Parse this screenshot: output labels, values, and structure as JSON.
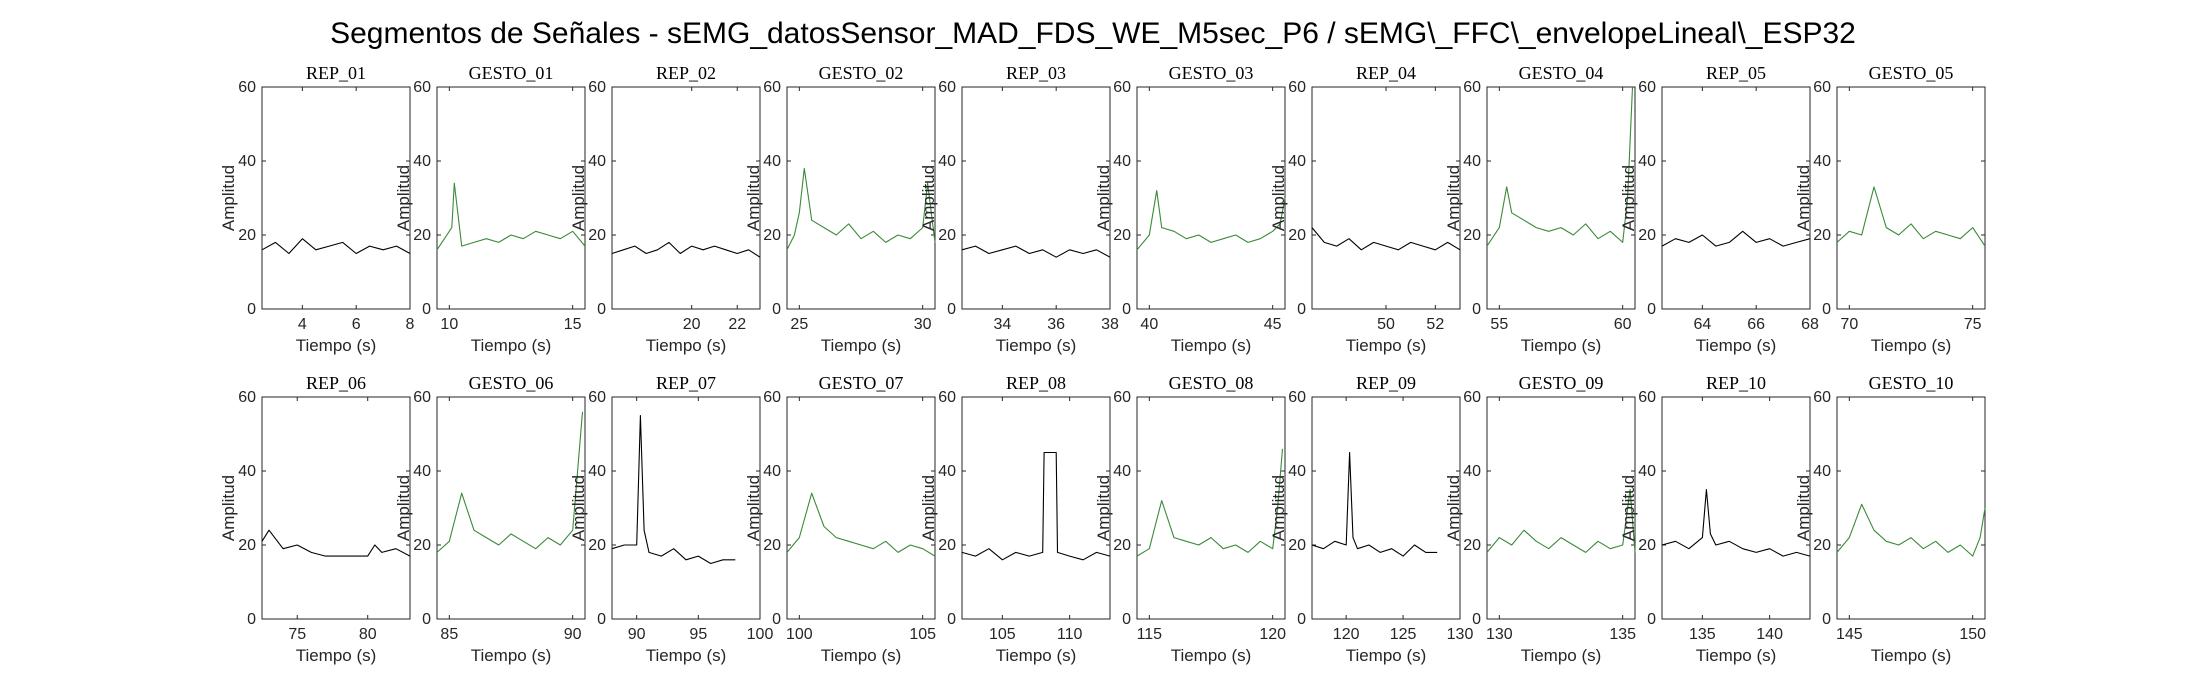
{
  "figure_title": "Segmentos de Señales - sEMG_datosSensor_MAD_FDS_WE_M5sec_P6 / sEMG\\_FFC\\_envelopeLineal\\_ESP32",
  "colors": {
    "rep": "#000000",
    "gesto": "#3a8a3a",
    "axes": "#262626"
  },
  "chart_data": [
    {
      "type": "line",
      "title": "REP_01",
      "xlabel": "Tiempo (s)",
      "ylabel": "Amplitud",
      "xlim": [
        2.5,
        8
      ],
      "ylim": [
        0,
        60
      ],
      "xticks": [
        4,
        6,
        8
      ],
      "yticks": [
        0,
        20,
        40,
        60
      ],
      "color_key": "rep",
      "series": [
        {
          "x": [
            2.5,
            3,
            3.5,
            4,
            4.5,
            5,
            5.5,
            6,
            6.5,
            7,
            7.5,
            8
          ],
          "y": [
            16,
            18,
            15,
            19,
            16,
            17,
            18,
            15,
            17,
            16,
            17,
            15
          ]
        }
      ]
    },
    {
      "type": "line",
      "title": "GESTO_01",
      "xlabel": "Tiempo (s)",
      "ylabel": "Amplitud",
      "xlim": [
        9.5,
        15.5
      ],
      "ylim": [
        0,
        60
      ],
      "xticks": [
        10,
        15
      ],
      "yticks": [
        0,
        20,
        40,
        60
      ],
      "color_key": "gesto",
      "series": [
        {
          "x": [
            9.5,
            9.8,
            10.1,
            10.2,
            10.5,
            11,
            11.5,
            12,
            12.5,
            13,
            13.5,
            14,
            14.5,
            15,
            15.5
          ],
          "y": [
            16,
            19,
            22,
            34,
            17,
            18,
            19,
            18,
            20,
            19,
            21,
            20,
            19,
            21,
            17
          ]
        }
      ]
    },
    {
      "type": "line",
      "title": "REP_02",
      "xlabel": "Tiempo (s)",
      "ylabel": "Amplitud",
      "xlim": [
        16.5,
        23
      ],
      "ylim": [
        0,
        60
      ],
      "xticks": [
        20,
        22
      ],
      "yticks": [
        0,
        20,
        40,
        60
      ],
      "color_key": "rep",
      "series": [
        {
          "x": [
            16.5,
            17,
            17.5,
            18,
            18.5,
            19,
            19.5,
            20,
            20.5,
            21,
            21.5,
            22,
            22.5,
            23
          ],
          "y": [
            15,
            16,
            17,
            15,
            16,
            18,
            15,
            17,
            16,
            17,
            16,
            15,
            16,
            14
          ]
        }
      ]
    },
    {
      "type": "line",
      "title": "GESTO_02",
      "xlabel": "Tiempo (s)",
      "ylabel": "Amplitud",
      "xlim": [
        24.5,
        30.5
      ],
      "ylim": [
        0,
        60
      ],
      "xticks": [
        25,
        30
      ],
      "yticks": [
        0,
        20,
        40,
        60
      ],
      "color_key": "gesto",
      "series": [
        {
          "x": [
            24.5,
            24.8,
            25,
            25.2,
            25.5,
            26,
            26.5,
            27,
            27.5,
            28,
            28.5,
            29,
            29.5,
            30,
            30.2,
            30.5
          ],
          "y": [
            16,
            20,
            26,
            38,
            24,
            22,
            20,
            23,
            19,
            21,
            18,
            20,
            19,
            22,
            34,
            18
          ]
        }
      ]
    },
    {
      "type": "line",
      "title": "REP_03",
      "xlabel": "Tiempo (s)",
      "ylabel": "Amplitud",
      "xlim": [
        32.5,
        38
      ],
      "ylim": [
        0,
        60
      ],
      "xticks": [
        34,
        36,
        38
      ],
      "yticks": [
        0,
        20,
        40,
        60
      ],
      "color_key": "rep",
      "series": [
        {
          "x": [
            32.5,
            33,
            33.5,
            34,
            34.5,
            35,
            35.5,
            36,
            36.5,
            37,
            37.5,
            38
          ],
          "y": [
            16,
            17,
            15,
            16,
            17,
            15,
            16,
            14,
            16,
            15,
            16,
            14
          ]
        }
      ]
    },
    {
      "type": "line",
      "title": "GESTO_03",
      "xlabel": "Tiempo (s)",
      "ylabel": "Amplitud",
      "xlim": [
        39.5,
        45.5
      ],
      "ylim": [
        0,
        60
      ],
      "xticks": [
        40,
        45
      ],
      "yticks": [
        0,
        20,
        40,
        60
      ],
      "color_key": "gesto",
      "series": [
        {
          "x": [
            39.5,
            40,
            40.3,
            40.5,
            41,
            41.5,
            42,
            42.5,
            43,
            43.5,
            44,
            44.5,
            45,
            45.3,
            45.5
          ],
          "y": [
            16,
            20,
            32,
            22,
            21,
            19,
            20,
            18,
            19,
            20,
            18,
            19,
            21,
            23,
            30
          ]
        }
      ]
    },
    {
      "type": "line",
      "title": "REP_04",
      "xlabel": "Tiempo (s)",
      "ylabel": "Amplitud",
      "xlim": [
        47,
        53
      ],
      "ylim": [
        0,
        60
      ],
      "xticks": [
        50,
        52
      ],
      "yticks": [
        0,
        20,
        40,
        60
      ],
      "color_key": "rep",
      "series": [
        {
          "x": [
            47,
            47.5,
            48,
            48.5,
            49,
            49.5,
            50,
            50.5,
            51,
            51.5,
            52,
            52.5,
            53
          ],
          "y": [
            22,
            18,
            17,
            19,
            16,
            18,
            17,
            16,
            18,
            17,
            16,
            18,
            16
          ]
        }
      ]
    },
    {
      "type": "line",
      "title": "GESTO_04",
      "xlabel": "Tiempo (s)",
      "ylabel": "Amplitud",
      "xlim": [
        54.5,
        60.5
      ],
      "ylim": [
        0,
        60
      ],
      "xticks": [
        55,
        60
      ],
      "yticks": [
        0,
        20,
        40,
        60
      ],
      "color_key": "gesto",
      "series": [
        {
          "x": [
            54.5,
            55,
            55.3,
            55.5,
            56,
            56.5,
            57,
            57.5,
            58,
            58.5,
            59,
            59.5,
            60,
            60.2,
            60.4
          ],
          "y": [
            17,
            22,
            33,
            26,
            24,
            22,
            21,
            22,
            20,
            23,
            19,
            21,
            18,
            30,
            60
          ]
        }
      ]
    },
    {
      "type": "line",
      "title": "REP_05",
      "xlabel": "Tiempo (s)",
      "ylabel": "Amplitud",
      "xlim": [
        62.5,
        68
      ],
      "ylim": [
        0,
        60
      ],
      "xticks": [
        64,
        66,
        68
      ],
      "yticks": [
        0,
        20,
        40,
        60
      ],
      "color_key": "rep",
      "series": [
        {
          "x": [
            62.5,
            63,
            63.5,
            64,
            64.5,
            65,
            65.5,
            66,
            66.5,
            67,
            67.5,
            68
          ],
          "y": [
            17,
            19,
            18,
            20,
            17,
            18,
            21,
            18,
            19,
            17,
            18,
            19
          ]
        }
      ]
    },
    {
      "type": "line",
      "title": "GESTO_05",
      "xlabel": "Tiempo (s)",
      "ylabel": "Amplitud",
      "xlim": [
        69.5,
        75.5
      ],
      "ylim": [
        0,
        60
      ],
      "xticks": [
        70,
        75
      ],
      "yticks": [
        0,
        20,
        40,
        60
      ],
      "color_key": "gesto",
      "series": [
        {
          "x": [
            69.5,
            70,
            70.5,
            71,
            71.5,
            72,
            72.5,
            73,
            73.5,
            74,
            74.5,
            75,
            75.5
          ],
          "y": [
            18,
            21,
            20,
            33,
            22,
            20,
            23,
            19,
            21,
            20,
            19,
            22,
            17
          ]
        }
      ]
    },
    {
      "type": "line",
      "title": "REP_06",
      "xlabel": "Tiempo (s)",
      "ylabel": "Amplitud",
      "xlim": [
        72.5,
        83
      ],
      "ylim": [
        0,
        60
      ],
      "xticks": [
        75,
        80
      ],
      "yticks": [
        0,
        20,
        40,
        60
      ],
      "color_key": "rep",
      "series": [
        {
          "x": [
            72.5,
            73,
            74,
            75,
            76,
            77,
            78,
            79,
            80,
            80.5,
            81,
            82,
            83
          ],
          "y": [
            21,
            24,
            19,
            20,
            18,
            17,
            17,
            17,
            17,
            20,
            18,
            19,
            17
          ]
        }
      ]
    },
    {
      "type": "line",
      "title": "GESTO_06",
      "xlabel": "Tiempo (s)",
      "ylabel": "Amplitud",
      "xlim": [
        84.5,
        90.5
      ],
      "ylim": [
        0,
        60
      ],
      "xticks": [
        85,
        90
      ],
      "yticks": [
        0,
        20,
        40,
        60
      ],
      "color_key": "gesto",
      "series": [
        {
          "x": [
            84.5,
            85,
            85.5,
            86,
            86.5,
            87,
            87.5,
            88,
            88.5,
            89,
            89.5,
            90,
            90.2,
            90.4
          ],
          "y": [
            18,
            21,
            34,
            24,
            22,
            20,
            23,
            21,
            19,
            22,
            20,
            24,
            40,
            56
          ]
        }
      ]
    },
    {
      "type": "line",
      "title": "REP_07",
      "xlabel": "Tiempo (s)",
      "ylabel": "Amplitud",
      "xlim": [
        88,
        100
      ],
      "ylim": [
        0,
        60
      ],
      "xticks": [
        90,
        95,
        100
      ],
      "yticks": [
        0,
        20,
        40,
        60
      ],
      "color_key": "rep",
      "series": [
        {
          "x": [
            88,
            89,
            90,
            90.3,
            90.6,
            91,
            92,
            93,
            94,
            95,
            96,
            97,
            98
          ],
          "y": [
            19,
            20,
            20,
            55,
            24,
            18,
            17,
            19,
            16,
            17,
            15,
            16,
            16
          ]
        }
      ]
    },
    {
      "type": "line",
      "title": "GESTO_07",
      "xlabel": "Tiempo (s)",
      "ylabel": "Amplitud",
      "xlim": [
        99.5,
        105.5
      ],
      "ylim": [
        0,
        60
      ],
      "xticks": [
        100,
        105
      ],
      "yticks": [
        0,
        20,
        40,
        60
      ],
      "color_key": "gesto",
      "series": [
        {
          "x": [
            99.5,
            100,
            100.5,
            101,
            101.5,
            102,
            102.5,
            103,
            103.5,
            104,
            104.5,
            105,
            105.5
          ],
          "y": [
            18,
            22,
            34,
            25,
            22,
            21,
            20,
            19,
            21,
            18,
            20,
            19,
            17
          ]
        }
      ]
    },
    {
      "type": "line",
      "title": "REP_08",
      "xlabel": "Tiempo (s)",
      "ylabel": "Amplitud",
      "xlim": [
        102,
        113
      ],
      "ylim": [
        0,
        60
      ],
      "xticks": [
        105,
        110
      ],
      "yticks": [
        0,
        20,
        40,
        60
      ],
      "color_key": "rep",
      "series": [
        {
          "x": [
            102,
            103,
            104,
            105,
            106,
            107,
            108,
            108.1,
            109,
            109.1,
            110,
            111,
            112,
            113
          ],
          "y": [
            18,
            17,
            19,
            16,
            18,
            17,
            18,
            45,
            45,
            18,
            17,
            16,
            18,
            17
          ]
        }
      ]
    },
    {
      "type": "line",
      "title": "GESTO_08",
      "xlabel": "Tiempo (s)",
      "ylabel": "Amplitud",
      "xlim": [
        114.5,
        120.5
      ],
      "ylim": [
        0,
        60
      ],
      "xticks": [
        115,
        120
      ],
      "yticks": [
        0,
        20,
        40,
        60
      ],
      "color_key": "gesto",
      "series": [
        {
          "x": [
            114.5,
            115,
            115.5,
            116,
            116.5,
            117,
            117.5,
            118,
            118.5,
            119,
            119.5,
            120,
            120.2,
            120.4
          ],
          "y": [
            17,
            19,
            32,
            22,
            21,
            20,
            22,
            19,
            20,
            18,
            21,
            19,
            30,
            46
          ]
        }
      ]
    },
    {
      "type": "line",
      "title": "REP_09",
      "xlabel": "Tiempo (s)",
      "ylabel": "Amplitud",
      "xlim": [
        117,
        130
      ],
      "ylim": [
        0,
        60
      ],
      "xticks": [
        120,
        125,
        130
      ],
      "yticks": [
        0,
        20,
        40,
        60
      ],
      "color_key": "rep",
      "series": [
        {
          "x": [
            117,
            118,
            119,
            120,
            120.3,
            120.6,
            121,
            122,
            123,
            124,
            125,
            126,
            127,
            128
          ],
          "y": [
            20,
            19,
            21,
            20,
            45,
            22,
            19,
            20,
            18,
            19,
            17,
            20,
            18,
            18
          ]
        }
      ]
    },
    {
      "type": "line",
      "title": "GESTO_09",
      "xlabel": "Tiempo (s)",
      "ylabel": "Amplitud",
      "xlim": [
        129.5,
        135.5
      ],
      "ylim": [
        0,
        60
      ],
      "xticks": [
        130,
        135
      ],
      "yticks": [
        0,
        20,
        40,
        60
      ],
      "color_key": "gesto",
      "series": [
        {
          "x": [
            129.5,
            130,
            130.5,
            131,
            131.5,
            132,
            132.5,
            133,
            133.5,
            134,
            134.5,
            135,
            135.3,
            135.5
          ],
          "y": [
            18,
            22,
            20,
            24,
            21,
            19,
            22,
            20,
            18,
            21,
            19,
            20,
            35,
            18
          ]
        }
      ]
    },
    {
      "type": "line",
      "title": "REP_10",
      "xlabel": "Tiempo (s)",
      "ylabel": "Amplitud",
      "xlim": [
        132,
        143
      ],
      "ylim": [
        0,
        60
      ],
      "xticks": [
        135,
        140
      ],
      "yticks": [
        0,
        20,
        40,
        60
      ],
      "color_key": "rep",
      "series": [
        {
          "x": [
            132,
            133,
            134,
            135,
            135.3,
            135.6,
            136,
            137,
            138,
            139,
            140,
            141,
            142,
            143
          ],
          "y": [
            20,
            21,
            19,
            22,
            35,
            23,
            20,
            21,
            19,
            18,
            19,
            17,
            18,
            17
          ]
        }
      ]
    },
    {
      "type": "line",
      "title": "GESTO_10",
      "xlabel": "Tiempo (s)",
      "ylabel": "Amplitud",
      "xlim": [
        144.5,
        150.5
      ],
      "ylim": [
        0,
        60
      ],
      "xticks": [
        145,
        150
      ],
      "yticks": [
        0,
        20,
        40,
        60
      ],
      "color_key": "gesto",
      "series": [
        {
          "x": [
            144.5,
            145,
            145.5,
            146,
            146.5,
            147,
            147.5,
            148,
            148.5,
            149,
            149.5,
            150,
            150.3,
            150.5
          ],
          "y": [
            18,
            22,
            31,
            24,
            21,
            20,
            22,
            19,
            21,
            18,
            20,
            17,
            22,
            30
          ]
        }
      ]
    }
  ]
}
